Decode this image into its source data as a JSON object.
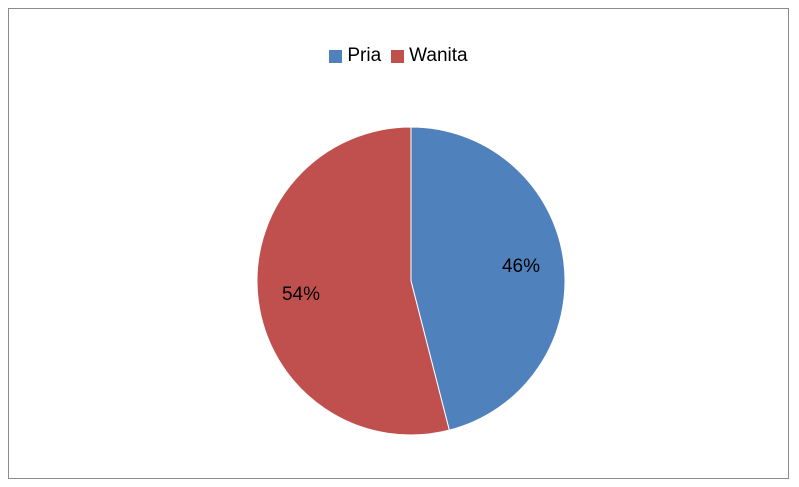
{
  "chart_data": {
    "type": "pie",
    "title": "",
    "legend_position": "top",
    "slices": [
      {
        "name": "Pria",
        "value": 46,
        "label": "46%",
        "color": "#4F81BD"
      },
      {
        "name": "Wanita",
        "value": 54,
        "label": "54%",
        "color": "#C0504D"
      }
    ]
  }
}
